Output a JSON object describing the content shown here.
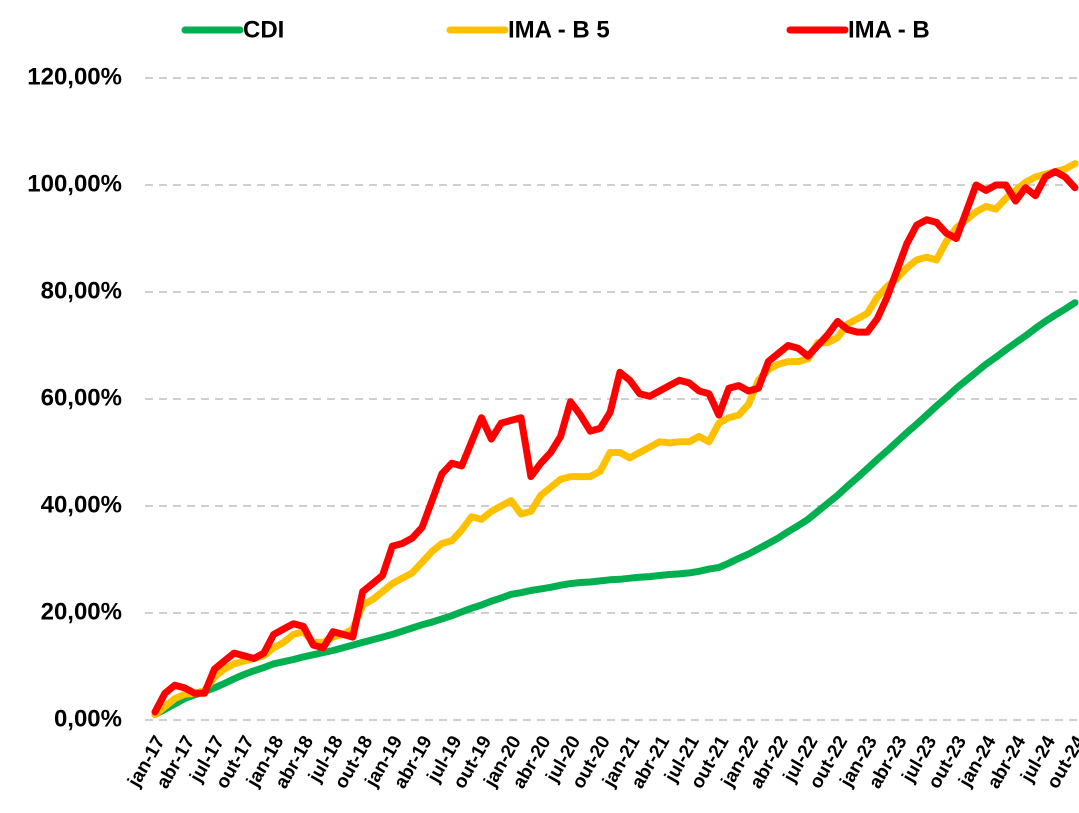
{
  "chart_data": {
    "type": "line",
    "categories": [
      "jan-17",
      null,
      null,
      "abr-17",
      null,
      null,
      "jul-17",
      null,
      null,
      "out-17",
      null,
      null,
      "jan-18",
      null,
      null,
      "abr-18",
      null,
      null,
      "jul-18",
      null,
      null,
      "out-18",
      null,
      null,
      "jan-19",
      null,
      null,
      "abr-19",
      null,
      null,
      "jul-19",
      null,
      null,
      "out-19",
      null,
      null,
      "jan-20",
      null,
      null,
      "abr-20",
      null,
      null,
      "jul-20",
      null,
      null,
      "out-20",
      null,
      null,
      "jan-21",
      null,
      null,
      "abr-21",
      null,
      null,
      "jul-21",
      null,
      null,
      "out-21",
      null,
      null,
      "jan-22",
      null,
      null,
      "abr-22",
      null,
      null,
      "jul-22",
      null,
      null,
      "out-22",
      null,
      null,
      "jan-23",
      null,
      null,
      "abr-23",
      null,
      null,
      "jul-23",
      null,
      null,
      "out-23",
      null,
      null,
      "jan-24",
      null,
      null,
      "abr-24",
      null,
      null,
      "jul-24",
      null,
      null,
      "out-24"
    ],
    "series": [
      {
        "name": "CDI",
        "color": "#00b050",
        "values": [
          1,
          2,
          3,
          4,
          4.7,
          5.3,
          6,
          6.8,
          7.7,
          8.5,
          9.2,
          9.8,
          10.5,
          10.9,
          11.3,
          11.8,
          12.2,
          12.6,
          13,
          13.5,
          14,
          14.5,
          15,
          15.5,
          16,
          16.6,
          17.2,
          17.8,
          18.3,
          18.9,
          19.5,
          20.2,
          20.9,
          21.5,
          22.2,
          22.8,
          23.5,
          23.8,
          24.2,
          24.5,
          24.8,
          25.2,
          25.5,
          25.7,
          25.8,
          26,
          26.2,
          26.3,
          26.5,
          26.7,
          26.8,
          27,
          27.2,
          27.3,
          27.5,
          27.8,
          28.2,
          28.5,
          29.3,
          30.2,
          31,
          32,
          33,
          34,
          35.2,
          36.3,
          37.5,
          39,
          40.5,
          42,
          43.7,
          45.3,
          47,
          48.7,
          50.3,
          52,
          53.7,
          55.3,
          57,
          58.7,
          60.3,
          62,
          63.5,
          65,
          66.5,
          67.8,
          69.2,
          70.5,
          71.8,
          73.2,
          74.5,
          75.7,
          76.8,
          78
        ]
      },
      {
        "name": "IMA - B 5",
        "color": "#ffc000",
        "values": [
          1,
          2.5,
          4,
          4.8,
          5,
          5.5,
          8,
          9.5,
          10.5,
          11,
          11.5,
          12,
          13.5,
          14.5,
          16,
          16.5,
          14.5,
          14.5,
          15.5,
          16,
          17,
          21.5,
          22.5,
          24,
          25.5,
          26.5,
          27.5,
          29.5,
          31.5,
          33,
          33.5,
          35.5,
          38,
          37.5,
          39,
          40,
          41,
          38.5,
          39,
          42,
          43.5,
          45,
          45.5,
          45.5,
          45.5,
          46.5,
          50,
          50,
          49,
          50,
          51,
          52,
          51.8,
          52,
          52,
          53,
          52,
          55.5,
          56.5,
          57,
          59,
          63.5,
          65.5,
          66.5,
          67,
          67,
          67.5,
          70.5,
          70.5,
          71.5,
          74,
          75,
          76,
          79,
          81,
          82.5,
          84.5,
          86,
          86.5,
          86,
          89.5,
          92,
          93.5,
          95,
          96,
          95.5,
          97.5,
          99,
          100.5,
          101.5,
          102,
          102.5,
          103,
          104
        ]
      },
      {
        "name": "IMA - B",
        "color": "#ff0000",
        "values": [
          1.5,
          5,
          6.5,
          6,
          5,
          5,
          9.5,
          11,
          12.5,
          12,
          11.5,
          12.5,
          16,
          17,
          18,
          17.5,
          14,
          13.5,
          16.5,
          16,
          15.5,
          24,
          25.5,
          27,
          32.5,
          33,
          34,
          36,
          41,
          46,
          48,
          47.5,
          52,
          56.5,
          52.5,
          55.5,
          56,
          56.5,
          45.5,
          48,
          50,
          53,
          59.5,
          57,
          54,
          54.5,
          57.5,
          65,
          63.5,
          61,
          60.5,
          61.5,
          62.5,
          63.5,
          63,
          61.5,
          61,
          57,
          62,
          62.5,
          61.5,
          62,
          67,
          68.5,
          70,
          69.5,
          68,
          70,
          72,
          74.5,
          73,
          72.5,
          72.5,
          75,
          79,
          84,
          89,
          92.5,
          93.5,
          93,
          91,
          90,
          95,
          100,
          99,
          100,
          100,
          97,
          99.5,
          98,
          101.5,
          102.5,
          101.5,
          99.5
        ]
      }
    ],
    "ylim": [
      0,
      120
    ],
    "yticks": [
      {
        "value": 0,
        "label": "0,00%"
      },
      {
        "value": 20,
        "label": "20,00%"
      },
      {
        "value": 40,
        "label": "40,00%"
      },
      {
        "value": 60,
        "label": "60,00%"
      },
      {
        "value": 80,
        "label": "80,00%"
      },
      {
        "value": 100,
        "label": "100,00%"
      },
      {
        "value": 120,
        "label": "120,00%"
      }
    ],
    "grid": true
  }
}
